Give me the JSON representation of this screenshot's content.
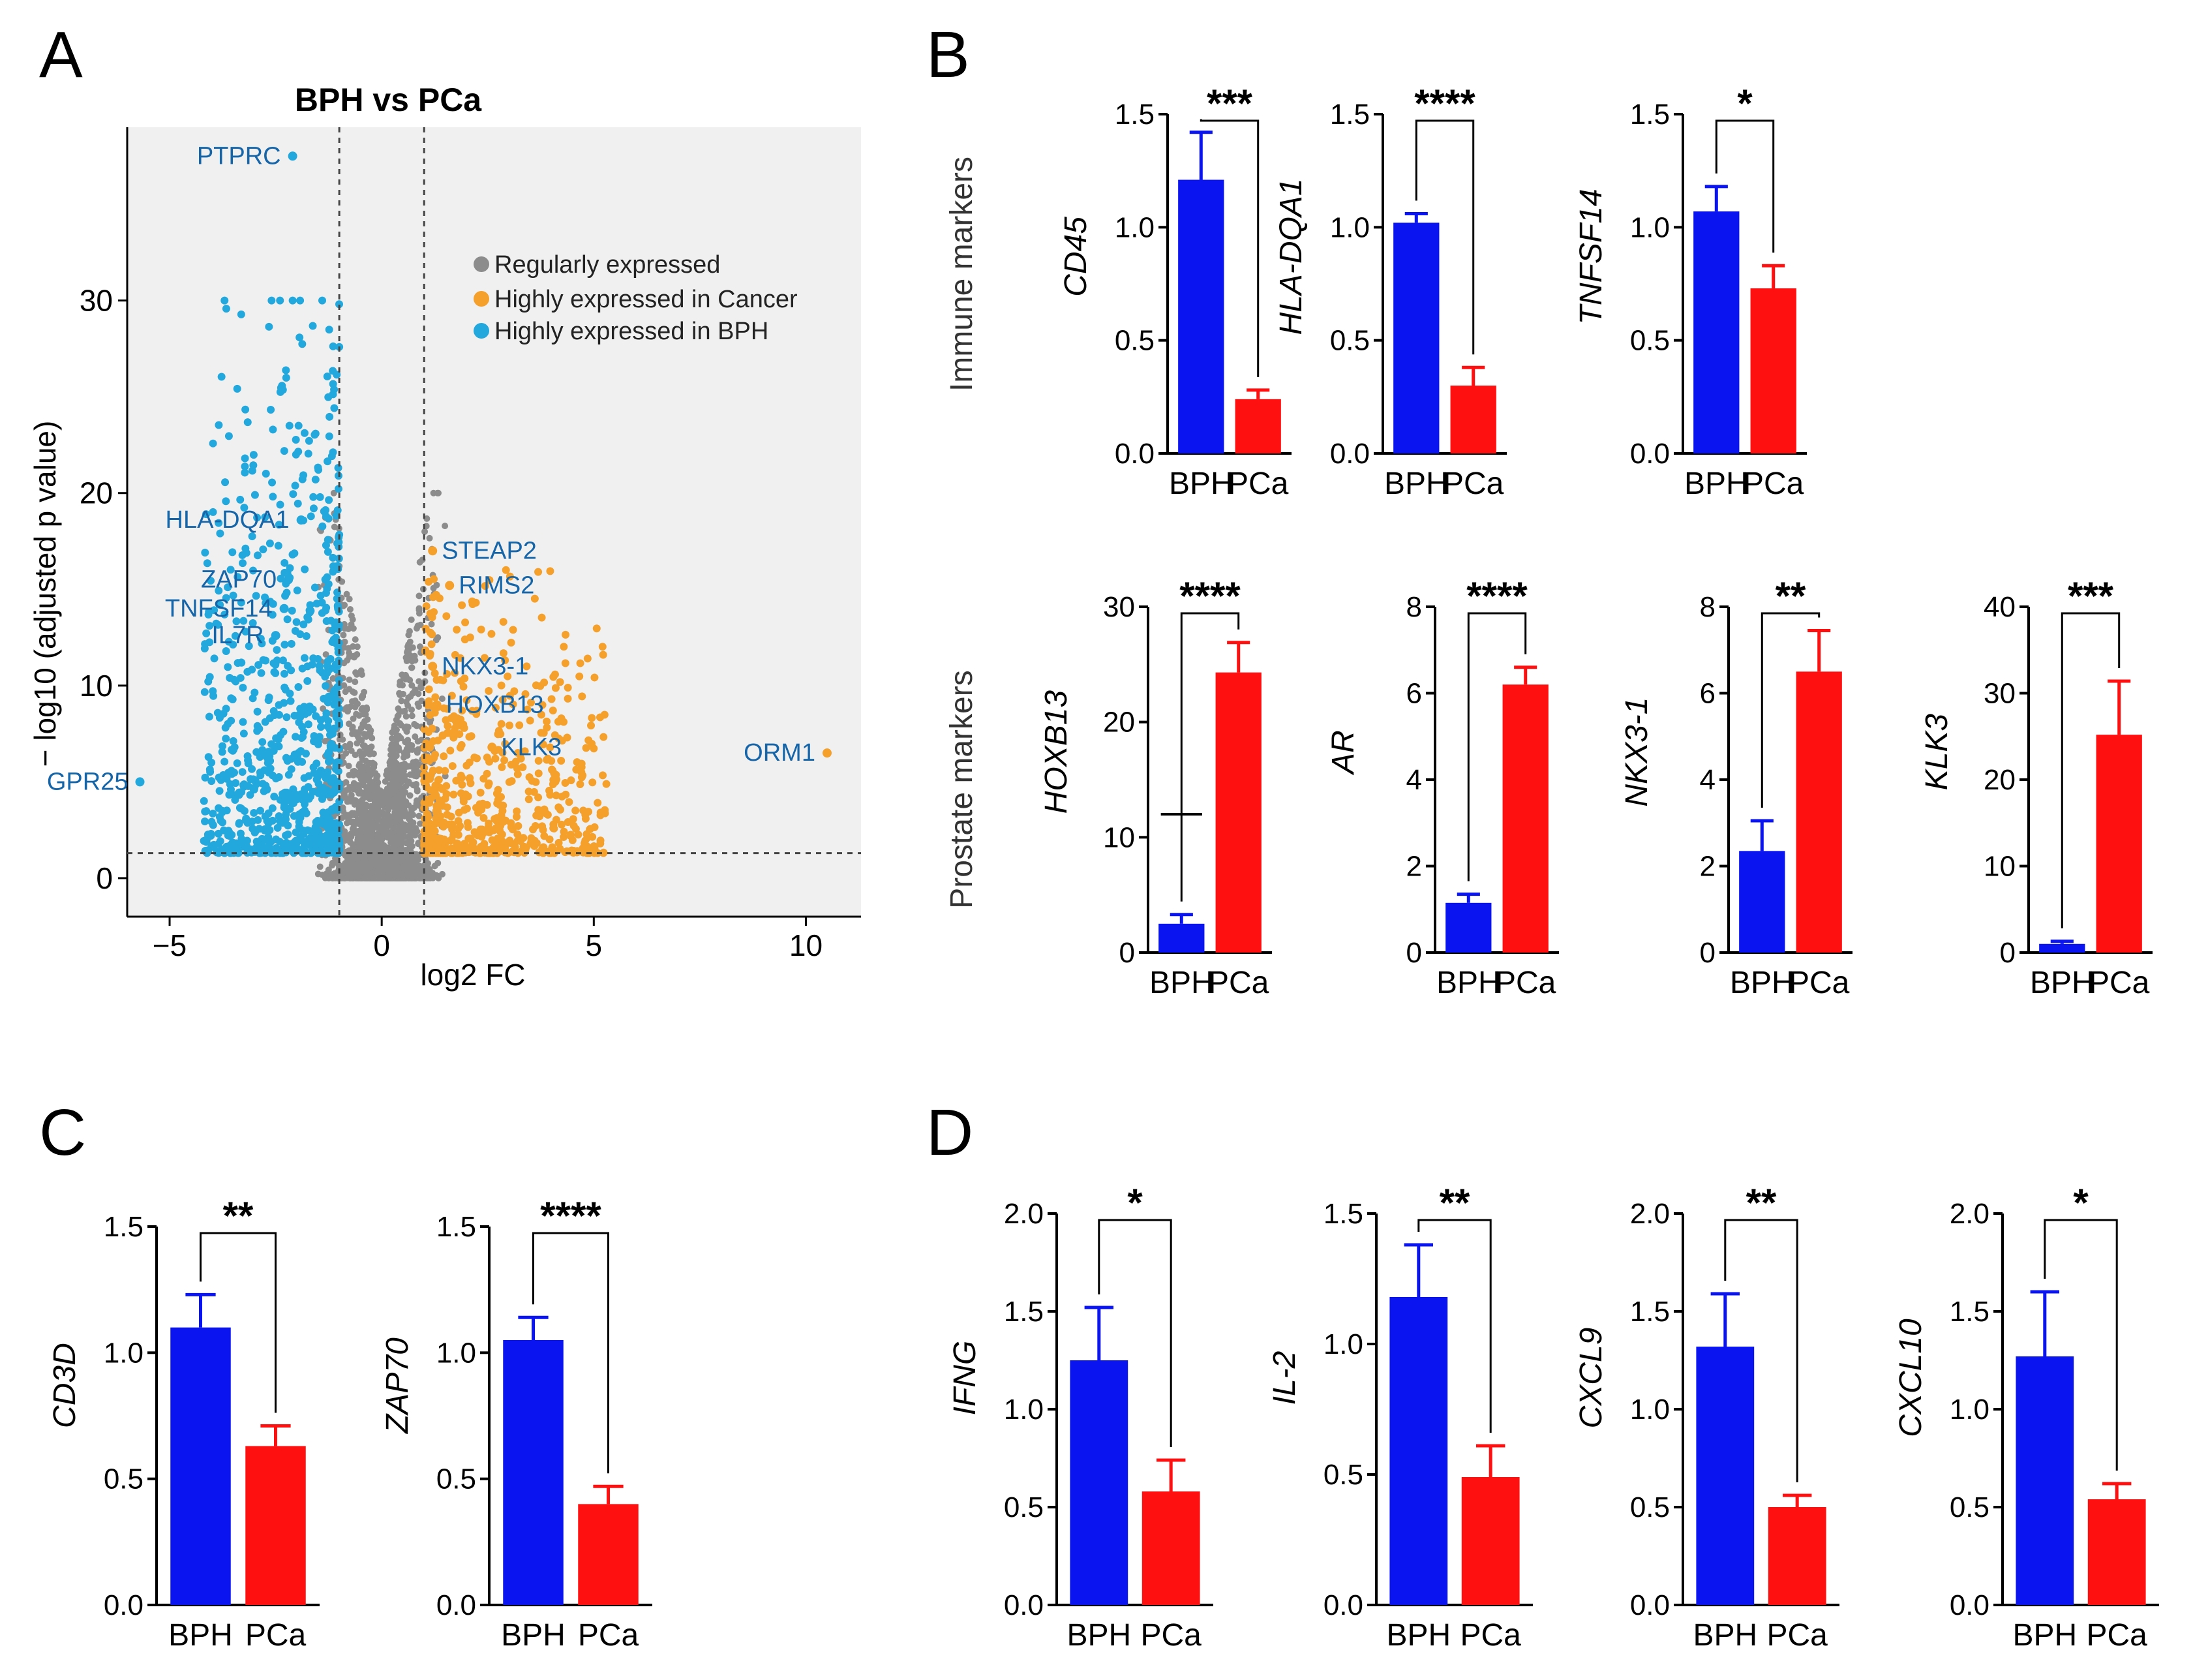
{
  "figure": {
    "panel_letters": [
      "A",
      "B",
      "C",
      "D"
    ],
    "row_labels": {
      "immune": "Immune markers",
      "prostate": "Prostate markers"
    },
    "colors": {
      "bph": "#0a14f0",
      "pca": "#ff1010",
      "regular": "#8c8c8c",
      "cancer": "#f5a02a",
      "bph_dot": "#22a8dc",
      "gene_label": "#1565a8"
    }
  },
  "chart_data": [
    {
      "id": "volcano",
      "type": "scatter",
      "title": "BPH vs PCa",
      "xlabel": "log2 FC",
      "ylabel": "− log10 (adjusted p value)",
      "xlim": [
        -6,
        11.3
      ],
      "ylim": [
        -2,
        39
      ],
      "xticks": [
        -5,
        0,
        5,
        10
      ],
      "yticks": [
        0,
        10,
        20,
        30
      ],
      "thresholds": {
        "x": [
          -1,
          1
        ],
        "y": 1.3
      },
      "legend": [
        {
          "label": "Regularly expressed",
          "color": "#8c8c8c"
        },
        {
          "label": "Highly expressed in Cancer",
          "color": "#f5a02a"
        },
        {
          "label": "Highly expressed in BPH",
          "color": "#22a8dc"
        }
      ],
      "labeled_points": [
        {
          "gene": "PTPRC",
          "x": -2.1,
          "y": 37.5,
          "group": "bph"
        },
        {
          "gene": "HLA-DQA1",
          "x": -1.9,
          "y": 18.6,
          "group": "bph"
        },
        {
          "gene": "ZAP70",
          "x": -2.2,
          "y": 15.5,
          "group": "bph"
        },
        {
          "gene": "TNFSF14",
          "x": -2.3,
          "y": 14.0,
          "group": "bph"
        },
        {
          "gene": "IL7R",
          "x": -2.5,
          "y": 12.6,
          "group": "bph"
        },
        {
          "gene": "GPR25",
          "x": -5.7,
          "y": 5.0,
          "group": "bph"
        },
        {
          "gene": "STEAP2",
          "x": 1.2,
          "y": 17.0,
          "group": "cancer"
        },
        {
          "gene": "RIMS2",
          "x": 1.6,
          "y": 15.2,
          "group": "cancer"
        },
        {
          "gene": "NKX3-1",
          "x": 1.2,
          "y": 11.0,
          "group": "cancer"
        },
        {
          "gene": "HOXB13",
          "x": 1.3,
          "y": 9.0,
          "group": "cancer"
        },
        {
          "gene": "KLK3",
          "x": 2.6,
          "y": 6.8,
          "group": "cancer"
        },
        {
          "gene": "ORM1",
          "x": 10.5,
          "y": 6.5,
          "group": "cancer"
        }
      ]
    },
    {
      "id": "CD45",
      "type": "bar",
      "panel": "B",
      "ylabel": "CD45",
      "categories": [
        "BPH",
        "PCa"
      ],
      "values": [
        1.21,
        0.24
      ],
      "errors": [
        0.21,
        0.04
      ],
      "ylim": [
        0,
        1.5
      ],
      "yticks": [
        "0.0",
        "0.5",
        "1.0",
        "1.5"
      ],
      "significance": "***"
    },
    {
      "id": "HLA-DQA1",
      "type": "bar",
      "panel": "B",
      "ylabel": "HLA-DQA1",
      "categories": [
        "BPH",
        "PCa"
      ],
      "values": [
        1.02,
        0.3
      ],
      "errors": [
        0.04,
        0.08
      ],
      "ylim": [
        0,
        1.5
      ],
      "yticks": [
        "0.0",
        "0.5",
        "1.0",
        "1.5"
      ],
      "significance": "****"
    },
    {
      "id": "TNFSF14",
      "type": "bar",
      "panel": "B",
      "ylabel": "TNFSF14",
      "categories": [
        "BPH",
        "PCa"
      ],
      "values": [
        1.07,
        0.73
      ],
      "errors": [
        0.11,
        0.1
      ],
      "ylim": [
        0,
        1.5
      ],
      "yticks": [
        "0.0",
        "0.5",
        "1.0",
        "1.5"
      ],
      "significance": "*"
    },
    {
      "id": "HOXB13",
      "type": "bar",
      "panel": "B",
      "ylabel": "HOXB13",
      "categories": [
        "BPH",
        "PCa"
      ],
      "values": [
        2.5,
        24.3
      ],
      "errors": [
        0.8,
        2.6
      ],
      "ylim": [
        0,
        30
      ],
      "yticks": [
        "0",
        "10",
        "20",
        "30"
      ],
      "significance": "****",
      "marker_line": 12
    },
    {
      "id": "AR",
      "type": "bar",
      "panel": "B",
      "ylabel": "AR",
      "categories": [
        "BPH",
        "PCa"
      ],
      "values": [
        1.15,
        6.2
      ],
      "errors": [
        0.2,
        0.4
      ],
      "ylim": [
        0,
        8
      ],
      "yticks": [
        "0",
        "2",
        "4",
        "6",
        "8"
      ],
      "significance": "****"
    },
    {
      "id": "NKX3-1",
      "type": "bar",
      "panel": "B",
      "ylabel": "NKX3-1",
      "categories": [
        "BPH",
        "PCa"
      ],
      "values": [
        2.35,
        6.5
      ],
      "errors": [
        0.7,
        0.95
      ],
      "ylim": [
        0,
        8
      ],
      "yticks": [
        "0",
        "2",
        "4",
        "6",
        "8"
      ],
      "significance": "**"
    },
    {
      "id": "KLK3",
      "type": "bar",
      "panel": "B",
      "ylabel": "KLK3",
      "categories": [
        "BPH",
        "PCa"
      ],
      "values": [
        1.0,
        25.2
      ],
      "errors": [
        0.3,
        6.2
      ],
      "ylim": [
        0,
        40
      ],
      "yticks": [
        "0",
        "10",
        "20",
        "30",
        "40"
      ],
      "significance": "***"
    },
    {
      "id": "CD3D",
      "type": "bar",
      "panel": "C",
      "ylabel": "CD3D",
      "categories": [
        "BPH",
        "PCa"
      ],
      "values": [
        1.1,
        0.63
      ],
      "errors": [
        0.13,
        0.08
      ],
      "ylim": [
        0,
        1.5
      ],
      "yticks": [
        "0.0",
        "0.5",
        "1.0",
        "1.5"
      ],
      "significance": "**"
    },
    {
      "id": "ZAP70",
      "type": "bar",
      "panel": "C",
      "ylabel": "ZAP70",
      "categories": [
        "BPH",
        "PCa"
      ],
      "values": [
        1.05,
        0.4
      ],
      "errors": [
        0.09,
        0.07
      ],
      "ylim": [
        0,
        1.5
      ],
      "yticks": [
        "0.0",
        "0.5",
        "1.0",
        "1.5"
      ],
      "significance": "****"
    },
    {
      "id": "IFNG",
      "type": "bar",
      "panel": "D",
      "ylabel": "IFNG",
      "categories": [
        "BPH",
        "PCa"
      ],
      "values": [
        1.25,
        0.58
      ],
      "errors": [
        0.27,
        0.16
      ],
      "ylim": [
        0,
        2.0
      ],
      "yticks": [
        "0.0",
        "0.5",
        "1.0",
        "1.5",
        "2.0"
      ],
      "significance": "*"
    },
    {
      "id": "IL-2",
      "type": "bar",
      "panel": "D",
      "ylabel": "IL-2",
      "categories": [
        "BPH",
        "PCa"
      ],
      "values": [
        1.18,
        0.49
      ],
      "errors": [
        0.2,
        0.12
      ],
      "ylim": [
        0,
        1.5
      ],
      "yticks": [
        "0.0",
        "0.5",
        "1.0",
        "1.5"
      ],
      "significance": "**"
    },
    {
      "id": "CXCL9",
      "type": "bar",
      "panel": "D",
      "ylabel": "CXCL9",
      "categories": [
        "BPH",
        "PCa"
      ],
      "values": [
        1.32,
        0.5
      ],
      "errors": [
        0.27,
        0.06
      ],
      "ylim": [
        0,
        2.0
      ],
      "yticks": [
        "0.0",
        "0.5",
        "1.0",
        "1.5",
        "2.0"
      ],
      "significance": "**"
    },
    {
      "id": "CXCL10",
      "type": "bar",
      "panel": "D",
      "ylabel": "CXCL10",
      "categories": [
        "BPH",
        "PCa"
      ],
      "values": [
        1.27,
        0.54
      ],
      "errors": [
        0.33,
        0.08
      ],
      "ylim": [
        0,
        2.0
      ],
      "yticks": [
        "0.0",
        "0.5",
        "1.0",
        "1.5",
        "2.0"
      ],
      "significance": "*"
    }
  ]
}
